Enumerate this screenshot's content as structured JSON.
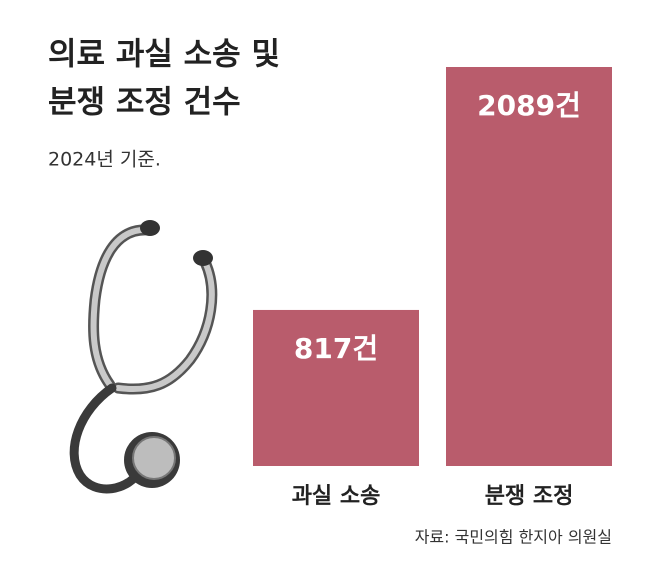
{
  "chart_data": {
    "type": "bar",
    "title": [
      "의료 과실 소송 및",
      "분쟁 조정 건수"
    ],
    "subtitle": "2024년 기준.",
    "categories": [
      "과실 소송",
      "분쟁 조정"
    ],
    "values": [
      817,
      2089
    ],
    "value_labels": [
      "817건",
      "2089건"
    ],
    "color": "#b95c6c",
    "source": "자료: 국민의힘 한지아 의원실"
  }
}
